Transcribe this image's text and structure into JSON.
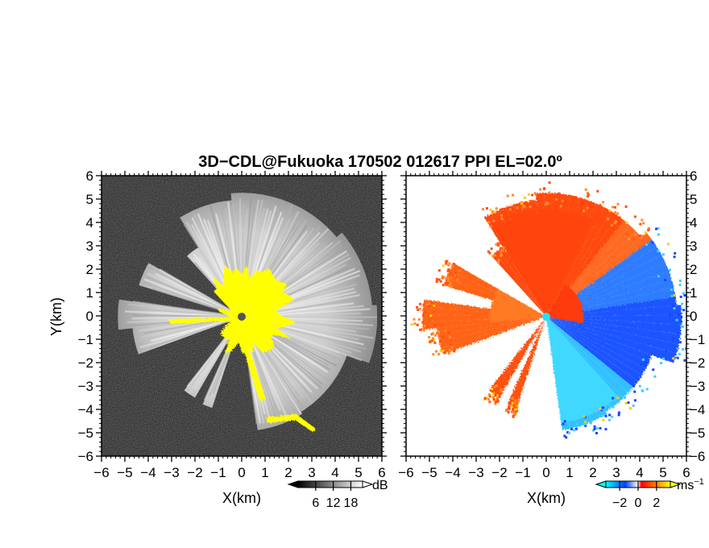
{
  "chart_data": {
    "type": "heatmap",
    "title": "3D−CDL@Fukuoka 170502 012617 PPI EL=02.0º",
    "panels": [
      {
        "quantity": "signal intensity",
        "xlabel": "X(km)",
        "ylabel": "Y(km)",
        "xlim": [
          -6,
          6
        ],
        "ylim": [
          -6,
          6
        ],
        "xticks": [
          "−6",
          "−5",
          "−4",
          "−3",
          "−2",
          "−1",
          "0",
          "1",
          "2",
          "3",
          "4",
          "5",
          "6"
        ],
        "yticks": [
          "6",
          "5",
          "4",
          "3",
          "2",
          "1",
          "0",
          "−1",
          "−2",
          "−3",
          "−4",
          "−5",
          "−6"
        ],
        "colormap": "grayscale",
        "highlight_color": "#ffff00",
        "colorbar": {
          "unit": "dB",
          "tick_labels": [
            "6",
            "12",
            "18"
          ],
          "ticks": [
            6,
            12,
            18
          ],
          "range": [
            0,
            22
          ]
        }
      },
      {
        "quantity": "radial velocity",
        "xlabel": "X(km)",
        "xlim": [
          -6,
          6
        ],
        "ylim": [
          -6,
          6
        ],
        "xticks": [
          "−6",
          "−5",
          "−4",
          "−3",
          "−2",
          "−1",
          "0",
          "1",
          "2",
          "3",
          "4",
          "5",
          "6"
        ],
        "yticks": [
          "6",
          "5",
          "4",
          "3",
          "2",
          "1",
          "0",
          "−1",
          "−2",
          "−3",
          "−4",
          "−5",
          "−6"
        ],
        "colormap": "blue-cyan-red-orange",
        "colorbar": {
          "unit": "ms",
          "unit_exponent": "−1",
          "tick_labels": [
            "−2",
            "0",
            "2"
          ],
          "ticks": [
            -2,
            0,
            2
          ],
          "range": [
            -3.5,
            3.5
          ]
        }
      }
    ]
  }
}
